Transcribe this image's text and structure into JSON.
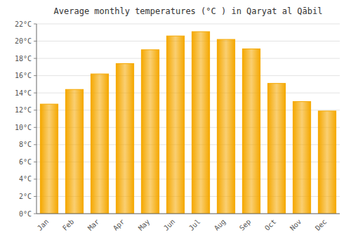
{
  "chart_data": {
    "type": "bar",
    "title": "Average monthly temperatures (°C ) in Qaryat al Qābil",
    "categories": [
      "Jan",
      "Feb",
      "Mar",
      "Apr",
      "May",
      "Jun",
      "Jul",
      "Aug",
      "Sep",
      "Oct",
      "Nov",
      "Dec"
    ],
    "values": [
      12.7,
      14.4,
      16.2,
      17.4,
      19.0,
      20.6,
      21.1,
      20.2,
      19.1,
      15.1,
      13.0,
      11.9
    ],
    "color": "#F5A800",
    "ylim": [
      0,
      22
    ],
    "yticks": [
      {
        "value": 0,
        "label": "0°C"
      },
      {
        "value": 2,
        "label": "2°C"
      },
      {
        "value": 4,
        "label": "4°C"
      },
      {
        "value": 6,
        "label": "6°C"
      },
      {
        "value": 8,
        "label": "8°C"
      },
      {
        "value": 10,
        "label": "10°C"
      },
      {
        "value": 12,
        "label": "12°C"
      },
      {
        "value": 14,
        "label": "14°C"
      },
      {
        "value": 16,
        "label": "16°C"
      },
      {
        "value": 18,
        "label": "18°C"
      },
      {
        "value": 20,
        "label": "20°C"
      },
      {
        "value": 22,
        "label": "22°C"
      }
    ],
    "grid": true
  }
}
